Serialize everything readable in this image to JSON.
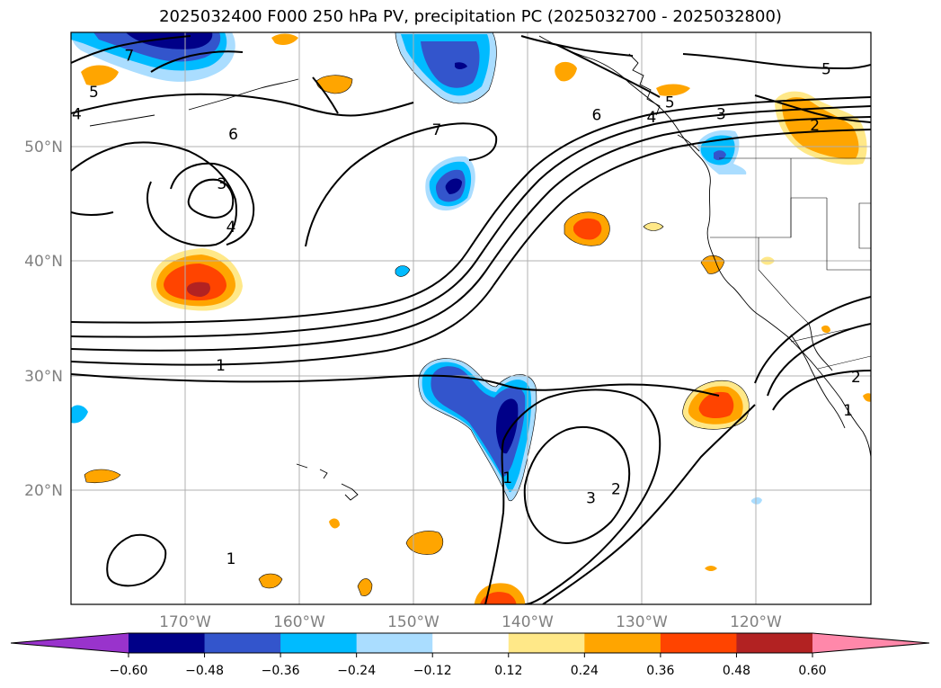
{
  "title": "2025032400 F000 250 hPa PV, precipitation PC (2025032700 - 2025032800)",
  "map": {
    "projection": "PlateCarree",
    "extent": {
      "lon_min": -180,
      "lon_max": -110,
      "lat_min": 10,
      "lat_max": 60
    },
    "lat_ticks": [
      {
        "value": 20,
        "label": "20°N"
      },
      {
        "value": 30,
        "label": "30°N"
      },
      {
        "value": 40,
        "label": "40°N"
      },
      {
        "value": 50,
        "label": "50°N"
      }
    ],
    "lon_ticks": [
      {
        "value": -170,
        "label": "170°W"
      },
      {
        "value": -160,
        "label": "160°W"
      },
      {
        "value": -150,
        "label": "150°W"
      },
      {
        "value": -140,
        "label": "140°W"
      },
      {
        "value": -130,
        "label": "130°W"
      },
      {
        "value": -120,
        "label": "120°W"
      }
    ],
    "grid": true
  },
  "colorbar": {
    "levels": [
      "−0.60",
      "−0.48",
      "−0.36",
      "−0.24",
      "−0.12",
      "0.12",
      "0.24",
      "0.36",
      "0.48",
      "0.60"
    ],
    "colors": [
      "#9933cc",
      "#000088",
      "#3355cc",
      "#00bbff",
      "#aaddff",
      "#ffffff",
      "#ffe888",
      "#ffa500",
      "#ff4400",
      "#b22222",
      "#ff88aa"
    ],
    "extend": "both"
  },
  "pv_contour_labels": [
    {
      "text": "7",
      "lon": -174.9,
      "lat": 58.0
    },
    {
      "text": "5",
      "lon": -178.0,
      "lat": 54.8
    },
    {
      "text": "4",
      "lon": -179.5,
      "lat": 52.9
    },
    {
      "text": "6",
      "lon": -165.8,
      "lat": 51.1
    },
    {
      "text": "3",
      "lon": -166.8,
      "lat": 46.8
    },
    {
      "text": "4",
      "lon": -166.0,
      "lat": 43.0
    },
    {
      "text": "7",
      "lon": -148.0,
      "lat": 51.5
    },
    {
      "text": "6",
      "lon": -134.0,
      "lat": 52.8
    },
    {
      "text": "4",
      "lon": -129.2,
      "lat": 52.6
    },
    {
      "text": "5",
      "lon": -127.6,
      "lat": 53.9
    },
    {
      "text": "3",
      "lon": -123.1,
      "lat": 52.9
    },
    {
      "text": "5",
      "lon": -113.9,
      "lat": 56.8
    },
    {
      "text": "2",
      "lon": -114.9,
      "lat": 51.9
    },
    {
      "text": "1",
      "lon": -166.9,
      "lat": 30.9
    },
    {
      "text": "1",
      "lon": -141.8,
      "lat": 21.1
    },
    {
      "text": "3",
      "lon": -134.5,
      "lat": 19.3
    },
    {
      "text": "2",
      "lon": -132.3,
      "lat": 20.1
    },
    {
      "text": "1",
      "lon": -166.0,
      "lat": 14.0
    },
    {
      "text": "2",
      "lon": -111.3,
      "lat": 29.9
    },
    {
      "text": "1",
      "lon": -112.0,
      "lat": 27.0
    }
  ]
}
